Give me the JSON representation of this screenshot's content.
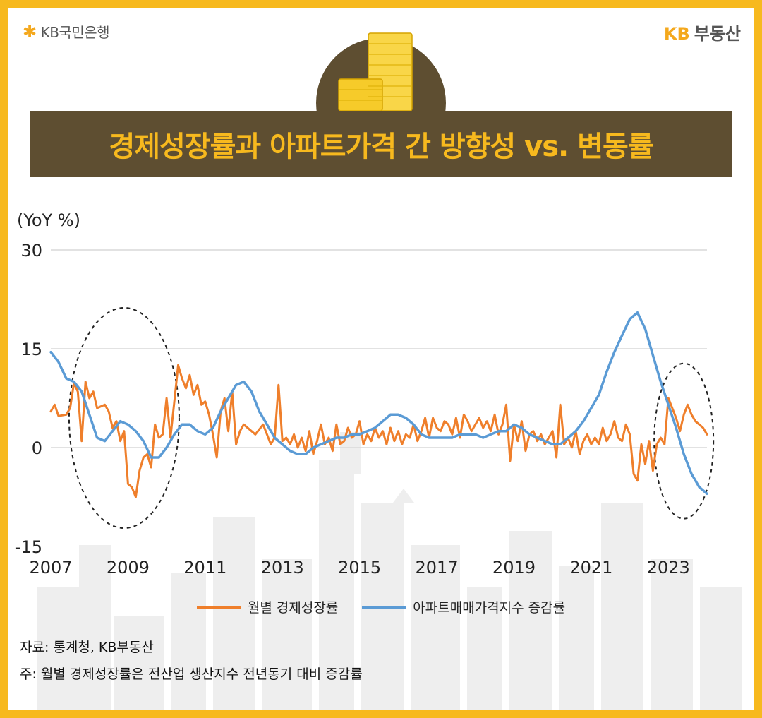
{
  "brand": {
    "left_logo": "KB국민은행",
    "right_logo_kb": "KB",
    "right_logo_text": "부동산"
  },
  "title": "경제성장률과 아파트가격 간 방향성 vs. 변동률",
  "notes": {
    "source": "자료: 통계청, KB부동산",
    "footnote": "주: 월별 경제성장률은 전산업 생산지수 전년동기 대비 증감률"
  },
  "colors": {
    "background": "#F7B91E",
    "title_band": "#5E4E31",
    "title_text": "#F7B91E",
    "orange_series": "#EF7F2B",
    "blue_series": "#5B9BD5"
  },
  "chart_data": {
    "type": "line",
    "unit_label": "(YoY %)",
    "y_ticks": [
      30,
      15,
      0,
      -15
    ],
    "ylim": [
      -15,
      30
    ],
    "x_ticks": [
      "2007",
      "2009",
      "2011",
      "2013",
      "2015",
      "2017",
      "2019",
      "2021",
      "2023"
    ],
    "xlim": [
      2007.0,
      2024.0
    ],
    "grid": true,
    "legend_position": "bottom",
    "highlights": [
      {
        "label": "circled period",
        "x_center": 2008.9,
        "y_center": 4.5
      },
      {
        "label": "circled period",
        "x_center": 2023.4,
        "y_center": 1.0
      }
    ],
    "series": [
      {
        "name": "월별 경제성장률",
        "color": "#EF7F2B",
        "points": [
          [
            2007.0,
            5.5
          ],
          [
            2007.1,
            6.5
          ],
          [
            2007.2,
            4.8
          ],
          [
            2007.4,
            5.0
          ],
          [
            2007.5,
            6.0
          ],
          [
            2007.6,
            9.8
          ],
          [
            2007.7,
            8.5
          ],
          [
            2007.8,
            1.0
          ],
          [
            2007.9,
            10.0
          ],
          [
            2008.0,
            7.5
          ],
          [
            2008.1,
            8.5
          ],
          [
            2008.2,
            6.0
          ],
          [
            2008.4,
            6.5
          ],
          [
            2008.5,
            5.5
          ],
          [
            2008.6,
            3.0
          ],
          [
            2008.7,
            4.0
          ],
          [
            2008.8,
            1.0
          ],
          [
            2008.9,
            2.5
          ],
          [
            2009.0,
            -5.5
          ],
          [
            2009.1,
            -6.0
          ],
          [
            2009.2,
            -7.5
          ],
          [
            2009.3,
            -3.5
          ],
          [
            2009.4,
            -1.5
          ],
          [
            2009.5,
            -1.0
          ],
          [
            2009.6,
            -3.0
          ],
          [
            2009.7,
            3.5
          ],
          [
            2009.8,
            1.5
          ],
          [
            2009.9,
            2.0
          ],
          [
            2010.0,
            7.5
          ],
          [
            2010.1,
            1.5
          ],
          [
            2010.2,
            7.0
          ],
          [
            2010.3,
            12.5
          ],
          [
            2010.4,
            10.5
          ],
          [
            2010.5,
            9.0
          ],
          [
            2010.6,
            11.0
          ],
          [
            2010.7,
            8.0
          ],
          [
            2010.8,
            9.5
          ],
          [
            2010.9,
            6.5
          ],
          [
            2011.0,
            7.0
          ],
          [
            2011.1,
            5.0
          ],
          [
            2011.2,
            2.0
          ],
          [
            2011.3,
            -1.5
          ],
          [
            2011.4,
            5.5
          ],
          [
            2011.5,
            7.5
          ],
          [
            2011.6,
            2.5
          ],
          [
            2011.7,
            8.5
          ],
          [
            2011.8,
            0.5
          ],
          [
            2011.9,
            2.5
          ],
          [
            2012.0,
            3.5
          ],
          [
            2012.2,
            2.5
          ],
          [
            2012.3,
            2.0
          ],
          [
            2012.5,
            3.5
          ],
          [
            2012.6,
            2.0
          ],
          [
            2012.7,
            0.5
          ],
          [
            2012.8,
            1.5
          ],
          [
            2012.9,
            9.5
          ],
          [
            2013.0,
            1.0
          ],
          [
            2013.1,
            1.5
          ],
          [
            2013.2,
            0.5
          ],
          [
            2013.3,
            2.0
          ],
          [
            2013.4,
            0.0
          ],
          [
            2013.5,
            1.5
          ],
          [
            2013.6,
            -0.5
          ],
          [
            2013.7,
            2.5
          ],
          [
            2013.8,
            -1.0
          ],
          [
            2013.9,
            1.0
          ],
          [
            2014.0,
            3.5
          ],
          [
            2014.1,
            0.5
          ],
          [
            2014.2,
            1.5
          ],
          [
            2014.3,
            -0.5
          ],
          [
            2014.4,
            3.5
          ],
          [
            2014.5,
            0.5
          ],
          [
            2014.6,
            1.0
          ],
          [
            2014.7,
            3.0
          ],
          [
            2014.8,
            1.5
          ],
          [
            2014.9,
            2.0
          ],
          [
            2015.0,
            4.0
          ],
          [
            2015.1,
            0.5
          ],
          [
            2015.2,
            2.0
          ],
          [
            2015.3,
            1.0
          ],
          [
            2015.4,
            3.0
          ],
          [
            2015.5,
            1.5
          ],
          [
            2015.6,
            2.5
          ],
          [
            2015.7,
            0.5
          ],
          [
            2015.8,
            3.0
          ],
          [
            2015.9,
            1.0
          ],
          [
            2016.0,
            2.5
          ],
          [
            2016.1,
            0.5
          ],
          [
            2016.2,
            2.0
          ],
          [
            2016.3,
            1.5
          ],
          [
            2016.4,
            3.5
          ],
          [
            2016.5,
            1.0
          ],
          [
            2016.6,
            2.5
          ],
          [
            2016.7,
            4.5
          ],
          [
            2016.8,
            1.5
          ],
          [
            2016.9,
            4.5
          ],
          [
            2017.0,
            3.0
          ],
          [
            2017.1,
            2.5
          ],
          [
            2017.2,
            4.0
          ],
          [
            2017.3,
            3.5
          ],
          [
            2017.4,
            2.0
          ],
          [
            2017.5,
            4.5
          ],
          [
            2017.6,
            1.5
          ],
          [
            2017.7,
            5.0
          ],
          [
            2017.8,
            4.0
          ],
          [
            2017.9,
            2.5
          ],
          [
            2018.0,
            3.5
          ],
          [
            2018.1,
            4.5
          ],
          [
            2018.2,
            3.0
          ],
          [
            2018.3,
            4.0
          ],
          [
            2018.4,
            2.5
          ],
          [
            2018.5,
            5.0
          ],
          [
            2018.6,
            2.0
          ],
          [
            2018.7,
            3.5
          ],
          [
            2018.8,
            6.5
          ],
          [
            2018.9,
            -2.0
          ],
          [
            2019.0,
            3.5
          ],
          [
            2019.1,
            1.0
          ],
          [
            2019.2,
            4.0
          ],
          [
            2019.3,
            -0.5
          ],
          [
            2019.4,
            2.0
          ],
          [
            2019.5,
            2.5
          ],
          [
            2019.6,
            1.0
          ],
          [
            2019.7,
            2.0
          ],
          [
            2019.8,
            0.5
          ],
          [
            2019.9,
            1.5
          ],
          [
            2020.0,
            2.5
          ],
          [
            2020.1,
            -1.5
          ],
          [
            2020.2,
            6.5
          ],
          [
            2020.3,
            0.5
          ],
          [
            2020.4,
            1.5
          ],
          [
            2020.5,
            0.0
          ],
          [
            2020.6,
            2.5
          ],
          [
            2020.7,
            -1.0
          ],
          [
            2020.8,
            1.0
          ],
          [
            2020.9,
            2.0
          ],
          [
            2021.0,
            0.5
          ],
          [
            2021.1,
            1.5
          ],
          [
            2021.2,
            0.5
          ],
          [
            2021.3,
            3.0
          ],
          [
            2021.4,
            1.0
          ],
          [
            2021.5,
            2.0
          ],
          [
            2021.6,
            4.0
          ],
          [
            2021.7,
            1.5
          ],
          [
            2021.8,
            1.0
          ],
          [
            2021.9,
            3.5
          ],
          [
            2022.0,
            2.0
          ],
          [
            2022.1,
            -4.0
          ],
          [
            2022.2,
            -5.0
          ],
          [
            2022.3,
            0.5
          ],
          [
            2022.4,
            -2.5
          ],
          [
            2022.5,
            1.0
          ],
          [
            2022.6,
            -3.5
          ],
          [
            2022.7,
            0.5
          ],
          [
            2022.8,
            1.5
          ],
          [
            2022.9,
            0.5
          ],
          [
            2023.0,
            7.5
          ],
          [
            2023.1,
            6.0
          ],
          [
            2023.2,
            4.5
          ],
          [
            2023.3,
            2.5
          ],
          [
            2023.4,
            5.0
          ],
          [
            2023.5,
            6.5
          ],
          [
            2023.6,
            5.0
          ],
          [
            2023.7,
            4.0
          ],
          [
            2023.8,
            3.5
          ],
          [
            2023.9,
            3.0
          ],
          [
            2024.0,
            2.0
          ]
        ]
      },
      {
        "name": "아파트매매가격지수 증감률",
        "color": "#5B9BD5",
        "points": [
          [
            2007.0,
            14.5
          ],
          [
            2007.2,
            13.0
          ],
          [
            2007.4,
            10.5
          ],
          [
            2007.6,
            10.0
          ],
          [
            2007.8,
            8.5
          ],
          [
            2008.0,
            5.0
          ],
          [
            2008.2,
            1.5
          ],
          [
            2008.4,
            1.0
          ],
          [
            2008.6,
            2.5
          ],
          [
            2008.8,
            4.0
          ],
          [
            2009.0,
            3.5
          ],
          [
            2009.2,
            2.5
          ],
          [
            2009.4,
            1.0
          ],
          [
            2009.6,
            -1.5
          ],
          [
            2009.8,
            -1.5
          ],
          [
            2010.0,
            0.0
          ],
          [
            2010.2,
            2.0
          ],
          [
            2010.4,
            3.5
          ],
          [
            2010.6,
            3.5
          ],
          [
            2010.8,
            2.5
          ],
          [
            2011.0,
            2.0
          ],
          [
            2011.2,
            3.0
          ],
          [
            2011.4,
            5.5
          ],
          [
            2011.6,
            7.5
          ],
          [
            2011.8,
            9.5
          ],
          [
            2012.0,
            10.0
          ],
          [
            2012.2,
            8.5
          ],
          [
            2012.4,
            5.5
          ],
          [
            2012.6,
            3.5
          ],
          [
            2012.8,
            1.5
          ],
          [
            2013.0,
            0.5
          ],
          [
            2013.2,
            -0.5
          ],
          [
            2013.4,
            -1.0
          ],
          [
            2013.6,
            -1.0
          ],
          [
            2013.8,
            0.0
          ],
          [
            2014.0,
            0.5
          ],
          [
            2014.2,
            1.0
          ],
          [
            2014.4,
            1.5
          ],
          [
            2014.6,
            1.5
          ],
          [
            2014.8,
            2.0
          ],
          [
            2015.0,
            2.0
          ],
          [
            2015.2,
            2.5
          ],
          [
            2015.4,
            3.0
          ],
          [
            2015.6,
            4.0
          ],
          [
            2015.8,
            5.0
          ],
          [
            2016.0,
            5.0
          ],
          [
            2016.2,
            4.5
          ],
          [
            2016.4,
            3.5
          ],
          [
            2016.6,
            2.0
          ],
          [
            2016.8,
            1.5
          ],
          [
            2017.0,
            1.5
          ],
          [
            2017.2,
            1.5
          ],
          [
            2017.4,
            1.5
          ],
          [
            2017.6,
            2.0
          ],
          [
            2017.8,
            2.0
          ],
          [
            2018.0,
            2.0
          ],
          [
            2018.2,
            1.5
          ],
          [
            2018.4,
            2.0
          ],
          [
            2018.6,
            2.5
          ],
          [
            2018.8,
            2.5
          ],
          [
            2019.0,
            3.5
          ],
          [
            2019.2,
            3.0
          ],
          [
            2019.4,
            2.0
          ],
          [
            2019.6,
            1.5
          ],
          [
            2019.8,
            1.0
          ],
          [
            2020.0,
            0.5
          ],
          [
            2020.2,
            0.5
          ],
          [
            2020.4,
            1.5
          ],
          [
            2020.6,
            2.5
          ],
          [
            2020.8,
            4.0
          ],
          [
            2021.0,
            6.0
          ],
          [
            2021.2,
            8.0
          ],
          [
            2021.4,
            11.5
          ],
          [
            2021.6,
            14.5
          ],
          [
            2021.8,
            17.0
          ],
          [
            2022.0,
            19.5
          ],
          [
            2022.2,
            20.5
          ],
          [
            2022.4,
            18.0
          ],
          [
            2022.6,
            14.0
          ],
          [
            2022.8,
            10.0
          ],
          [
            2023.0,
            6.5
          ],
          [
            2023.2,
            3.0
          ],
          [
            2023.4,
            -1.0
          ],
          [
            2023.6,
            -4.0
          ],
          [
            2023.8,
            -6.0
          ],
          [
            2024.0,
            -7.0
          ]
        ]
      }
    ]
  }
}
